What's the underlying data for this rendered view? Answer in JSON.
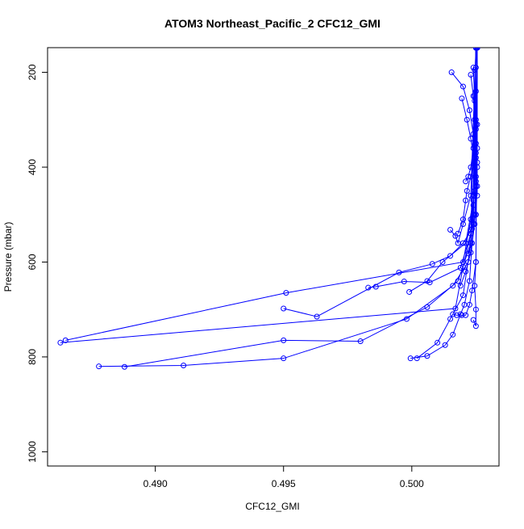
{
  "chart_data": {
    "type": "line",
    "title": "ATOM3 Northeast_Pacific_2 CFC12_GMI",
    "xlabel": "CFC12_GMI",
    "ylabel": "Pressure (mbar)",
    "xlim": [
      0.4858,
      0.5034
    ],
    "ylim": [
      1030,
      148
    ],
    "y_inverted": true,
    "grid": false,
    "legend": "none",
    "marker": "open-circle",
    "line_color": "#0000ff",
    "x_ticks": [
      0.49,
      0.495,
      0.5
    ],
    "x_tick_labels": [
      "0.490",
      "0.495",
      "0.500"
    ],
    "y_ticks": [
      200,
      400,
      600,
      800,
      1000
    ],
    "y_tick_labels": [
      "200",
      "400",
      "600",
      "800",
      "1000"
    ],
    "series": [
      {
        "x": [
          0.50155,
          0.502,
          0.50225,
          0.5024,
          0.5025,
          0.50255
        ],
        "y": [
          200,
          230,
          280,
          330,
          380,
          148
        ]
      },
      {
        "x": [
          0.50195,
          0.50215,
          0.5023,
          0.50245,
          0.50255,
          0.5025,
          0.50255
        ],
        "y": [
          255,
          300,
          340,
          390,
          440,
          500,
          148
        ]
      },
      {
        "x": [
          0.495,
          0.4963,
          0.4995,
          0.5008,
          0.5015,
          0.502,
          0.50235,
          0.5025,
          0.50255
        ],
        "y": [
          698,
          715,
          622,
          604,
          587,
          560,
          530,
          500,
          148
        ]
      },
      {
        "x": [
          0.4863,
          0.5017,
          0.502,
          0.5023,
          0.5024,
          0.5025
        ],
        "y": [
          770,
          698,
          610,
          540,
          460,
          148
        ]
      },
      {
        "x": [
          0.4865,
          0.4951,
          0.502,
          0.5023,
          0.50245,
          0.5025
        ],
        "y": [
          765,
          665,
          600,
          510,
          450,
          148
        ]
      },
      {
        "x": [
          0.4878,
          0.4911,
          0.495,
          0.4998,
          0.5016,
          0.5022,
          0.5024,
          0.5025
        ],
        "y": [
          820,
          818,
          803,
          720,
          650,
          600,
          500,
          148
        ]
      },
      {
        "x": [
          0.4888,
          0.495,
          0.498,
          0.5006,
          0.5018,
          0.5023,
          0.5024,
          0.5025
        ],
        "y": [
          821,
          765,
          767,
          695,
          640,
          560,
          480,
          148
        ]
      },
      {
        "x": [
          0.4983,
          0.4986,
          0.4997,
          0.5007,
          0.5019,
          0.5023,
          0.5025
        ],
        "y": [
          654,
          652,
          641,
          643,
          612,
          540,
          148
        ]
      },
      {
        "x": [
          0.4999,
          0.5006,
          0.5012,
          0.5021,
          0.5024,
          0.5025
        ],
        "y": [
          663,
          640,
          600,
          560,
          470,
          148
        ]
      },
      {
        "x": [
          0.49995,
          0.5006,
          0.5013,
          0.5016,
          0.5019,
          0.50205,
          0.50225,
          0.5024,
          0.5025
        ],
        "y": [
          803,
          798,
          775,
          753,
          710,
          690,
          640,
          520,
          148
        ]
      },
      {
        "x": [
          0.5002,
          0.501,
          0.5015,
          0.502,
          0.5023,
          0.5025
        ],
        "y": [
          803,
          770,
          720,
          670,
          560,
          148
        ]
      },
      {
        "x": [
          0.5016,
          0.50175,
          0.50195,
          0.5021,
          0.50225,
          0.50235,
          0.5025,
          0.50255
        ],
        "y": [
          710,
          712,
          712,
          712,
          690,
          660,
          600,
          148
        ]
      },
      {
        "x": [
          0.5024,
          0.5025,
          0.5025,
          0.50245,
          0.5025,
          0.50255
        ],
        "y": [
          722,
          735,
          700,
          650,
          600,
          148
        ]
      },
      {
        "x": [
          0.5015,
          0.5017,
          0.5018,
          0.502,
          0.5023,
          0.5025
        ],
        "y": [
          532,
          545,
          560,
          520,
          460,
          148
        ]
      },
      {
        "x": [
          0.5018,
          0.502,
          0.5021,
          0.50215,
          0.5023,
          0.5024,
          0.5025
        ],
        "y": [
          540,
          510,
          470,
          450,
          420,
          400,
          148
        ]
      },
      {
        "x": [
          0.5021,
          0.5022,
          0.5023,
          0.5024,
          0.5025,
          0.50255
        ],
        "y": [
          430,
          420,
          400,
          360,
          300,
          148
        ]
      },
      {
        "x": [
          0.5023,
          0.5024,
          0.50245,
          0.5025,
          0.50255,
          0.50255
        ],
        "y": [
          205,
          250,
          300,
          350,
          400,
          148
        ]
      },
      {
        "x": [
          0.5024,
          0.50245,
          0.5025,
          0.50255,
          0.5025,
          0.50255
        ],
        "y": [
          190,
          260,
          310,
          360,
          420,
          148
        ]
      },
      {
        "x": [
          0.50245,
          0.5025,
          0.50255,
          0.5025,
          0.50255,
          0.50255
        ],
        "y": [
          195,
          240,
          310,
          370,
          460,
          148
        ]
      },
      {
        "x": [
          0.5025,
          0.50245,
          0.5025,
          0.50255,
          0.5025,
          0.50255
        ],
        "y": [
          190,
          250,
          320,
          390,
          430,
          148
        ]
      },
      {
        "x": [
          0.5022,
          0.50235,
          0.50245,
          0.5025,
          0.50255
        ],
        "y": [
          582,
          560,
          520,
          440,
          148
        ]
      },
      {
        "x": [
          0.5019,
          0.5021,
          0.5023,
          0.50245,
          0.50255
        ],
        "y": [
          650,
          620,
          580,
          500,
          148
        ]
      }
    ]
  }
}
